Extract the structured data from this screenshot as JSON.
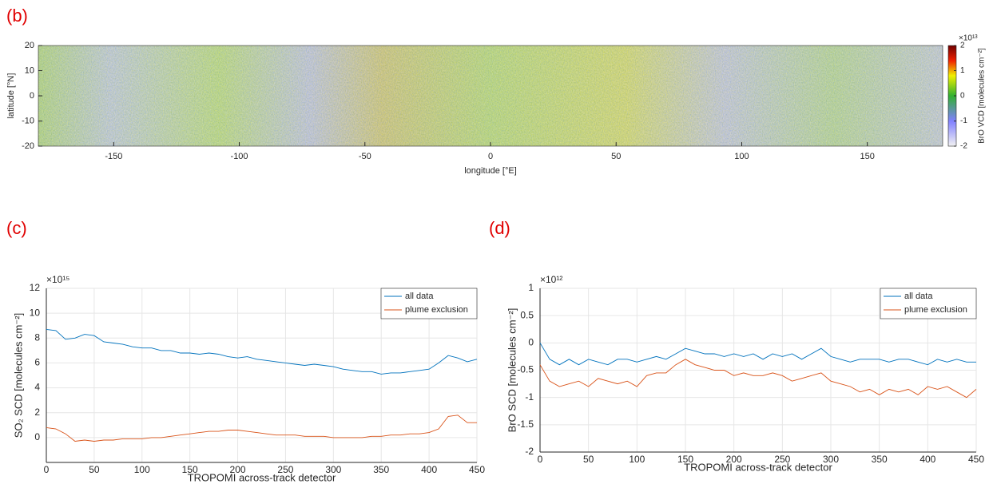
{
  "chart_data": [
    {
      "type": "map",
      "title": "(b)",
      "x_label": "longitude [°E]",
      "y_label": "latitude [°N]",
      "xlim": [
        -180,
        180
      ],
      "xticks": [
        -150,
        -100,
        -50,
        0,
        50,
        100,
        150
      ],
      "ylim": [
        -20,
        20
      ],
      "yticks": [
        -20,
        -10,
        0,
        10,
        20
      ],
      "colorbar": {
        "label": "BrO VCD  [molecules cm⁻²]",
        "multiplier": "×10¹³",
        "clim": [
          -2,
          2
        ],
        "ticks": [
          -2,
          -1,
          0,
          1,
          2
        ]
      }
    },
    {
      "type": "line",
      "title": "(c)",
      "x_label": "TROPOMI across-track detector",
      "y_label": "SO₂ SCD  [molecules cm⁻²]",
      "multiplier": "×10¹⁵",
      "xlim": [
        0,
        450
      ],
      "xticks": [
        0,
        50,
        100,
        150,
        200,
        250,
        300,
        350,
        400,
        450
      ],
      "ylim": [
        -2,
        12
      ],
      "yticks": [
        0,
        2,
        4,
        6,
        8,
        10,
        12
      ],
      "grid": true,
      "legend": "upper right",
      "x": [
        0,
        10,
        20,
        30,
        40,
        50,
        60,
        70,
        80,
        90,
        100,
        110,
        120,
        130,
        140,
        150,
        160,
        170,
        180,
        190,
        200,
        210,
        220,
        230,
        240,
        250,
        260,
        270,
        280,
        290,
        300,
        310,
        320,
        330,
        340,
        350,
        360,
        370,
        380,
        390,
        400,
        410,
        420,
        430,
        440,
        450
      ],
      "series": [
        {
          "name": "all data",
          "color": "#0072bd",
          "values": [
            8.7,
            8.6,
            7.9,
            8.0,
            8.3,
            8.2,
            7.7,
            7.6,
            7.5,
            7.3,
            7.2,
            7.2,
            7.0,
            7.0,
            6.8,
            6.8,
            6.7,
            6.8,
            6.7,
            6.5,
            6.4,
            6.5,
            6.3,
            6.2,
            6.1,
            6.0,
            5.9,
            5.8,
            5.9,
            5.8,
            5.7,
            5.5,
            5.4,
            5.3,
            5.3,
            5.1,
            5.2,
            5.2,
            5.3,
            5.4,
            5.5,
            6.0,
            6.6,
            6.4,
            6.1,
            6.3
          ]
        },
        {
          "name": "plume exclusion",
          "color": "#d95319",
          "values": [
            0.8,
            0.7,
            0.3,
            -0.3,
            -0.2,
            -0.3,
            -0.2,
            -0.2,
            -0.1,
            -0.1,
            -0.1,
            0.0,
            0.0,
            0.1,
            0.2,
            0.3,
            0.4,
            0.5,
            0.5,
            0.6,
            0.6,
            0.5,
            0.4,
            0.3,
            0.2,
            0.2,
            0.2,
            0.1,
            0.1,
            0.1,
            0.0,
            0.0,
            0.0,
            0.0,
            0.1,
            0.1,
            0.2,
            0.2,
            0.3,
            0.3,
            0.4,
            0.7,
            1.7,
            1.8,
            1.2,
            1.2
          ]
        }
      ]
    },
    {
      "type": "line",
      "title": "(d)",
      "x_label": "TROPOMI across-track detector",
      "y_label": "BrO SCD  [molecules cm⁻²]",
      "multiplier": "×10¹²",
      "xlim": [
        0,
        450
      ],
      "xticks": [
        0,
        50,
        100,
        150,
        200,
        250,
        300,
        350,
        400,
        450
      ],
      "ylim": [
        -2,
        1
      ],
      "yticks": [
        -2,
        -1.5,
        -1,
        -0.5,
        0,
        0.5,
        1
      ],
      "grid": true,
      "legend": "upper right",
      "x": [
        0,
        10,
        20,
        30,
        40,
        50,
        60,
        70,
        80,
        90,
        100,
        110,
        120,
        130,
        140,
        150,
        160,
        170,
        180,
        190,
        200,
        210,
        220,
        230,
        240,
        250,
        260,
        270,
        280,
        290,
        300,
        310,
        320,
        330,
        340,
        350,
        360,
        370,
        380,
        390,
        400,
        410,
        420,
        430,
        440,
        450
      ],
      "series": [
        {
          "name": "all data",
          "color": "#0072bd",
          "values": [
            0,
            -0.3,
            -0.4,
            -0.3,
            -0.4,
            -0.3,
            -0.35,
            -0.4,
            -0.3,
            -0.3,
            -0.35,
            -0.3,
            -0.25,
            -0.3,
            -0.2,
            -0.1,
            -0.15,
            -0.2,
            -0.2,
            -0.25,
            -0.2,
            -0.25,
            -0.2,
            -0.3,
            -0.2,
            -0.25,
            -0.2,
            -0.3,
            -0.2,
            -0.1,
            -0.25,
            -0.3,
            -0.35,
            -0.3,
            -0.3,
            -0.3,
            -0.35,
            -0.3,
            -0.3,
            -0.35,
            -0.4,
            -0.3,
            -0.35,
            -0.3,
            -0.35,
            -0.35
          ]
        },
        {
          "name": "plume exclusion",
          "color": "#d95319",
          "values": [
            -0.4,
            -0.7,
            -0.8,
            -0.75,
            -0.7,
            -0.8,
            -0.65,
            -0.7,
            -0.75,
            -0.7,
            -0.8,
            -0.6,
            -0.55,
            -0.55,
            -0.4,
            -0.3,
            -0.4,
            -0.45,
            -0.5,
            -0.5,
            -0.6,
            -0.55,
            -0.6,
            -0.6,
            -0.55,
            -0.6,
            -0.7,
            -0.65,
            -0.6,
            -0.55,
            -0.7,
            -0.75,
            -0.8,
            -0.9,
            -0.85,
            -0.95,
            -0.85,
            -0.9,
            -0.85,
            -0.95,
            -0.8,
            -0.85,
            -0.8,
            -0.9,
            -1.0,
            -0.85
          ]
        }
      ]
    }
  ]
}
